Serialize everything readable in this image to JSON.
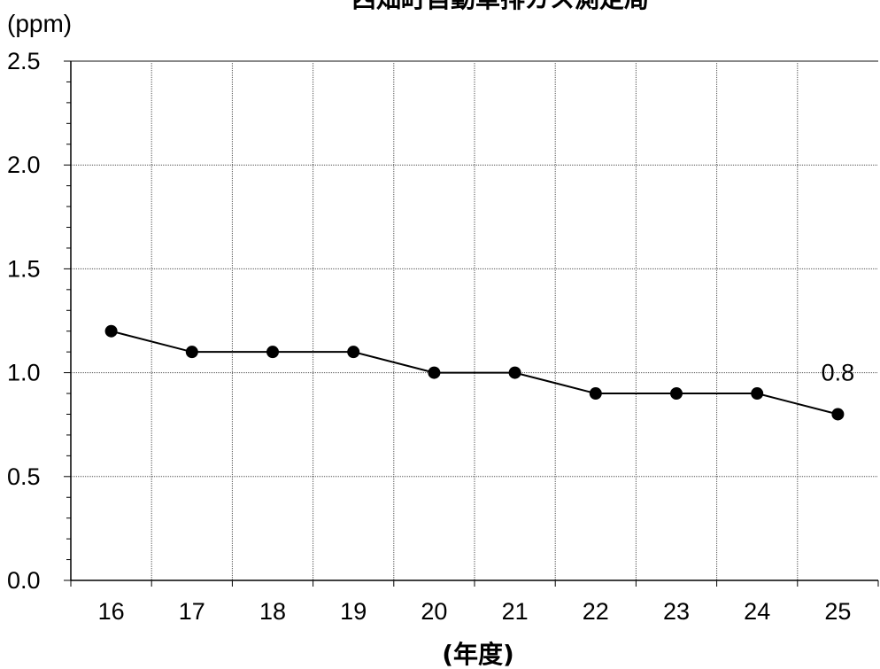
{
  "chart_data": {
    "type": "line",
    "title": "西畑町自動車排ガス測定局",
    "ylabel": "(ppm)",
    "xlabel": "(年度)",
    "categories": [
      "16",
      "17",
      "18",
      "19",
      "20",
      "21",
      "22",
      "23",
      "24",
      "25"
    ],
    "series": [
      {
        "values": [
          1.2,
          1.1,
          1.1,
          1.1,
          1.0,
          1.0,
          0.9,
          0.9,
          0.9,
          0.8
        ],
        "color": "#000000",
        "marker": "filled-circle"
      }
    ],
    "ylim": [
      0.0,
      2.5
    ],
    "y_ticks": [
      "0.0",
      "0.5",
      "1.0",
      "1.5",
      "2.0",
      "2.5"
    ],
    "y_minor_step": 0.1,
    "grid": true,
    "grid_style": "dotted",
    "annotations": [
      {
        "category": "25",
        "text": "0.8"
      }
    ]
  }
}
